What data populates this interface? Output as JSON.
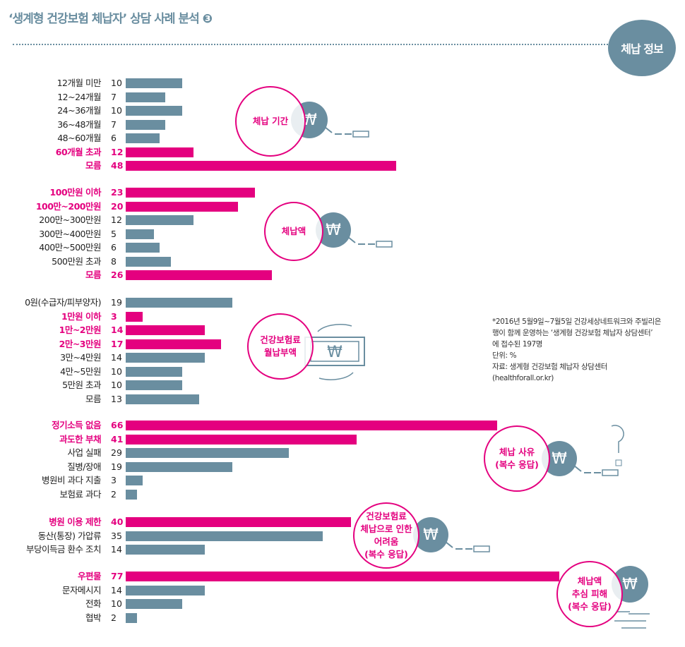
{
  "title": "‘생계형 건강보험 체납자’ 상담 사례 분석 ❸",
  "badge": "체납 정보",
  "note": [
    "*2016년 5월9일~7월5일 건강세상네트워크와 주빌리은",
    "행이 함께 운영하는 ‘생계형 건강보험 체납자 상담센터’",
    "에 접수된 197명",
    "단위: %",
    "자료: 생계형 건강보험 체납자 상담센터",
    "(healthforall.or.kr)"
  ],
  "colors": {
    "highlight": "#e4007f",
    "normal": "#6a8ea0"
  },
  "annotations": [
    "체납 기간",
    "체납액",
    "건강보험료\n월납부액",
    "체납 사유\n(복수 응답)",
    "건강보험료\n체납으로 인한\n어려움\n(복수 응답)",
    "체납액\n추심 피해\n(복수 응답)"
  ],
  "won_symbol": "₩",
  "chart_data": {
    "type": "bar",
    "orientation": "horizontal",
    "unit": "%",
    "groups": [
      {
        "name": "체납 기간",
        "categories": [
          "12개월 미만",
          "12~24개월",
          "24~36개월",
          "36~48개월",
          "48~60개월",
          "60개월 초과",
          "모름"
        ],
        "values": [
          10,
          7,
          10,
          7,
          6,
          12,
          48
        ],
        "highlight": [
          false,
          false,
          false,
          false,
          false,
          true,
          true
        ]
      },
      {
        "name": "체납액",
        "categories": [
          "100만원 이하",
          "100만~200만원",
          "200만~300만원",
          "300만~400만원",
          "400만~500만원",
          "500만원 초과",
          "모름"
        ],
        "values": [
          23,
          20,
          12,
          5,
          6,
          8,
          26
        ],
        "highlight": [
          true,
          true,
          false,
          false,
          false,
          false,
          true
        ]
      },
      {
        "name": "건강보험료 월납부액",
        "categories": [
          "0원(수급자/피부양자)",
          "1만원 이하",
          "1만~2만원",
          "2만~3만원",
          "3만~4만원",
          "4만~5만원",
          "5만원 초과",
          "모름"
        ],
        "values": [
          19,
          3,
          14,
          17,
          14,
          10,
          10,
          13
        ],
        "highlight": [
          false,
          true,
          true,
          true,
          false,
          false,
          false,
          false
        ]
      },
      {
        "name": "체납 사유 (복수 응답)",
        "categories": [
          "정기소득 없음",
          "과도한 부채",
          "사업 실패",
          "질병/장애",
          "병원비 과다 지출",
          "보험료 과다"
        ],
        "values": [
          66,
          41,
          29,
          19,
          3,
          2
        ],
        "highlight": [
          true,
          true,
          false,
          false,
          false,
          false
        ]
      },
      {
        "name": "건강보험료 체납으로 인한 어려움 (복수 응답)",
        "categories": [
          "병원 이용 제한",
          "동산(통장) 가압류",
          "부당이득금 환수 조치"
        ],
        "values": [
          40,
          35,
          14
        ],
        "highlight": [
          true,
          false,
          false
        ]
      },
      {
        "name": "체납액 추심 피해 (복수 응답)",
        "categories": [
          "우편물",
          "문자메시지",
          "전화",
          "협박"
        ],
        "values": [
          77,
          14,
          10,
          2
        ],
        "highlight": [
          true,
          false,
          false,
          false
        ]
      }
    ]
  }
}
